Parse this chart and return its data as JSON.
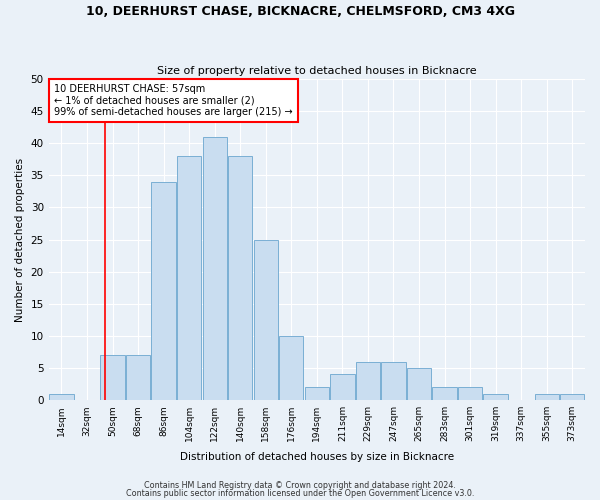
{
  "title1": "10, DEERHURST CHASE, BICKNACRE, CHELMSFORD, CM3 4XG",
  "title2": "Size of property relative to detached houses in Bicknacre",
  "xlabel": "Distribution of detached houses by size in Bicknacre",
  "ylabel": "Number of detached properties",
  "bar_labels": [
    "14sqm",
    "32sqm",
    "50sqm",
    "68sqm",
    "86sqm",
    "104sqm",
    "122sqm",
    "140sqm",
    "158sqm",
    "176sqm",
    "194sqm",
    "211sqm",
    "229sqm",
    "247sqm",
    "265sqm",
    "283sqm",
    "301sqm",
    "319sqm",
    "337sqm",
    "355sqm",
    "373sqm"
  ],
  "bar_values": [
    1,
    0,
    7,
    7,
    34,
    38,
    41,
    38,
    25,
    10,
    2,
    4,
    6,
    6,
    5,
    2,
    2,
    1,
    0,
    1,
    1
  ],
  "bar_color": "#c9ddf0",
  "bar_edge_color": "#7aafd4",
  "red_line_bin": 1.72,
  "annotation_title": "10 DEERHURST CHASE: 57sqm",
  "annotation_line1": "← 1% of detached houses are smaller (2)",
  "annotation_line2": "99% of semi-detached houses are larger (215) →",
  "ylim": [
    0,
    50
  ],
  "yticks": [
    0,
    5,
    10,
    15,
    20,
    25,
    30,
    35,
    40,
    45,
    50
  ],
  "footer1": "Contains HM Land Registry data © Crown copyright and database right 2024.",
  "footer2": "Contains public sector information licensed under the Open Government Licence v3.0.",
  "bg_color": "#eaf1f8",
  "plot_bg_color": "#eaf1f8"
}
